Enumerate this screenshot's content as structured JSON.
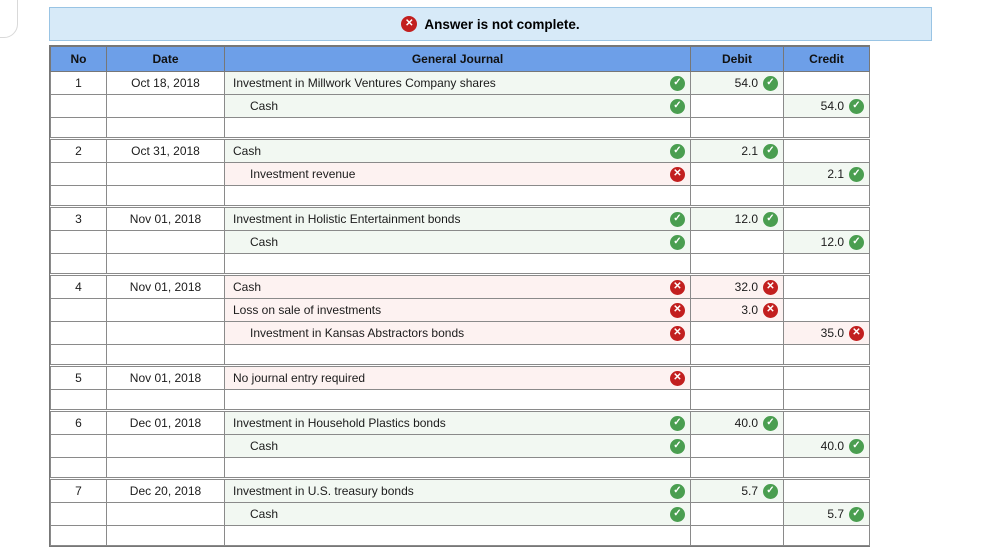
{
  "banner": {
    "label": "Answer is not complete."
  },
  "icons": {
    "correct": "✓",
    "incorrect": "✕",
    "banner_error": "✕"
  },
  "colors": {
    "header_bg": "#6d9fe8",
    "banner_bg": "#d7eaf8",
    "banner_border": "#99c4e4",
    "correct_bg": "#f2f8f2",
    "incorrect_bg": "#fdf2f1",
    "correct_icon": "#4a9e50",
    "incorrect_icon": "#c21f1f"
  },
  "table": {
    "columns": [
      "No",
      "Date",
      "General Journal",
      "Debit",
      "Credit"
    ],
    "entries": [
      {
        "no": "1",
        "date": "Oct 18, 2018",
        "lines": [
          {
            "account": "Investment in Millwork Ventures Company shares",
            "indent": false,
            "account_status": "correct",
            "debit": "54.0",
            "debit_status": "correct",
            "credit": "",
            "credit_status": null
          },
          {
            "account": "Cash",
            "indent": true,
            "account_status": "correct",
            "debit": "",
            "debit_status": null,
            "credit": "54.0",
            "credit_status": "correct"
          }
        ]
      },
      {
        "no": "2",
        "date": "Oct 31, 2018",
        "lines": [
          {
            "account": "Cash",
            "indent": false,
            "account_status": "correct",
            "debit": "2.1",
            "debit_status": "correct",
            "credit": "",
            "credit_status": null
          },
          {
            "account": "Investment revenue",
            "indent": true,
            "account_status": "incorrect",
            "debit": "",
            "debit_status": null,
            "credit": "2.1",
            "credit_status": "correct"
          }
        ]
      },
      {
        "no": "3",
        "date": "Nov 01, 2018",
        "lines": [
          {
            "account": "Investment in Holistic Entertainment bonds",
            "indent": false,
            "account_status": "correct",
            "debit": "12.0",
            "debit_status": "correct",
            "credit": "",
            "credit_status": null
          },
          {
            "account": "Cash",
            "indent": true,
            "account_status": "correct",
            "debit": "",
            "debit_status": null,
            "credit": "12.0",
            "credit_status": "correct"
          }
        ]
      },
      {
        "no": "4",
        "date": "Nov 01, 2018",
        "lines": [
          {
            "account": "Cash",
            "indent": false,
            "account_status": "incorrect",
            "debit": "32.0",
            "debit_status": "incorrect",
            "credit": "",
            "credit_status": null
          },
          {
            "account": "Loss on sale of investments",
            "indent": false,
            "account_status": "incorrect",
            "debit": "3.0",
            "debit_status": "incorrect",
            "credit": "",
            "credit_status": null
          },
          {
            "account": "Investment in Kansas Abstractors bonds",
            "indent": true,
            "account_status": "incorrect",
            "debit": "",
            "debit_status": null,
            "credit": "35.0",
            "credit_status": "incorrect"
          }
        ]
      },
      {
        "no": "5",
        "date": "Nov 01, 2018",
        "lines": [
          {
            "account": "No journal entry required",
            "indent": false,
            "account_status": "incorrect",
            "debit": "",
            "debit_status": null,
            "credit": "",
            "credit_status": null
          }
        ]
      },
      {
        "no": "6",
        "date": "Dec 01, 2018",
        "lines": [
          {
            "account": "Investment in Household Plastics bonds",
            "indent": false,
            "account_status": "correct",
            "debit": "40.0",
            "debit_status": "correct",
            "credit": "",
            "credit_status": null
          },
          {
            "account": "Cash",
            "indent": true,
            "account_status": "correct",
            "debit": "",
            "debit_status": null,
            "credit": "40.0",
            "credit_status": "correct"
          }
        ]
      },
      {
        "no": "7",
        "date": "Dec 20, 2018",
        "lines": [
          {
            "account": "Investment in U.S. treasury bonds",
            "indent": false,
            "account_status": "correct",
            "debit": "5.7",
            "debit_status": "correct",
            "credit": "",
            "credit_status": null
          },
          {
            "account": "Cash",
            "indent": true,
            "account_status": "correct",
            "debit": "",
            "debit_status": null,
            "credit": "5.7",
            "credit_status": "correct"
          }
        ]
      }
    ]
  }
}
